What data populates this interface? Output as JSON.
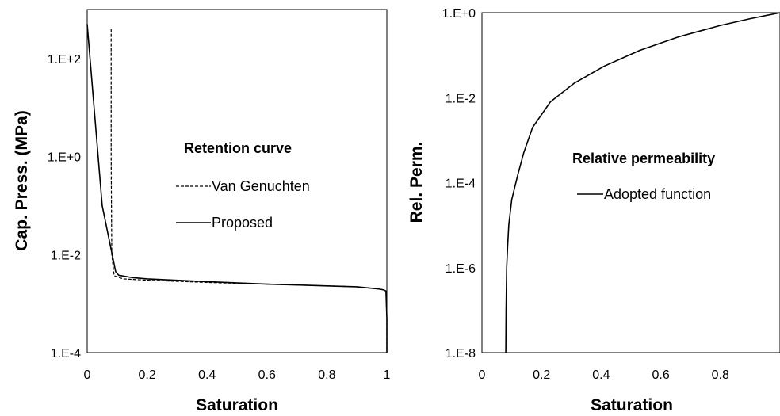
{
  "chart_data": [
    {
      "type": "line",
      "xlabel": "Saturation",
      "ylabel": "Cap. Press.  (MPa)",
      "xlim": [
        0,
        1
      ],
      "ylim": [
        0.0001,
        1000
      ],
      "yscale": "log",
      "grid": false,
      "legend_placement": "center-right",
      "x_ticks": [
        "0",
        "0.2",
        "0.4",
        "0.6",
        "0.8",
        "1"
      ],
      "x_tick_values": [
        0,
        0.2,
        0.4,
        0.6,
        0.8,
        1
      ],
      "y_ticks": [
        "1.E-4",
        "1.E-2",
        "1.E+0",
        "1.E+2"
      ],
      "y_tick_values": [
        0.0001,
        0.01,
        1,
        100
      ],
      "legend_title": "Retention curve",
      "series": [
        {
          "name": "Van Genuchten",
          "style": "dashed",
          "x": [
            0.08,
            0.08,
            0.082,
            0.09,
            0.12,
            0.2,
            0.4,
            0.6,
            0.8,
            0.9,
            0.97,
            0.99,
            0.997,
            1.0,
            1.0
          ],
          "y": [
            400,
            1,
            0.01,
            0.0037,
            0.0032,
            0.003,
            0.0027,
            0.0025,
            0.0023,
            0.0022,
            0.002,
            0.0019,
            0.0018,
            0.0005,
            0.0001
          ]
        },
        {
          "name": "Proposed",
          "style": "solid",
          "x": [
            0.0,
            0.05,
            0.095,
            0.105,
            0.15,
            0.2,
            0.4,
            0.6,
            0.8,
            0.9,
            0.97,
            0.99,
            0.997,
            1.0,
            1.0
          ],
          "y": [
            500,
            0.1,
            0.0045,
            0.0038,
            0.0034,
            0.0032,
            0.0028,
            0.0025,
            0.0023,
            0.0022,
            0.002,
            0.0019,
            0.0018,
            0.0005,
            0.0001
          ]
        }
      ]
    },
    {
      "type": "line",
      "xlabel": "Saturation",
      "ylabel": "Rel. Perm.",
      "xlim": [
        0,
        1
      ],
      "ylim": [
        1e-08,
        1
      ],
      "yscale": "log",
      "grid": false,
      "legend_placement": "center-right",
      "x_ticks": [
        "0",
        "0.2",
        "0.4",
        "0.6",
        "0.8"
      ],
      "x_tick_values": [
        0,
        0.2,
        0.4,
        0.6,
        0.8
      ],
      "y_ticks": [
        "1.E-8",
        "1.E-6",
        "1.E-4",
        "1.E-2",
        "1.E+0"
      ],
      "y_tick_values": [
        1e-08,
        1e-06,
        0.0001,
        0.01,
        1
      ],
      "legend_title": "Relative permeability",
      "series": [
        {
          "name": "Adopted function",
          "style": "solid",
          "x": [
            0.08,
            0.081,
            0.083,
            0.086,
            0.09,
            0.1,
            0.12,
            0.14,
            0.17,
            0.23,
            0.31,
            0.41,
            0.53,
            0.66,
            0.8,
            0.9,
            1.0
          ],
          "y": [
            1e-08,
            1e-07,
            1e-06,
            3e-06,
            1e-05,
            4e-05,
            0.00015,
            0.0005,
            0.002,
            0.008,
            0.022,
            0.055,
            0.13,
            0.27,
            0.5,
            0.72,
            1.0
          ]
        }
      ]
    }
  ]
}
